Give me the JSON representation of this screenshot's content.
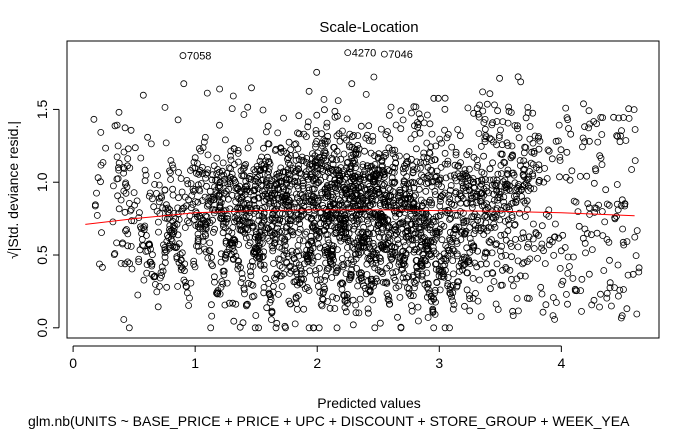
{
  "chart_data": {
    "type": "scatter",
    "title": "Scale-Location",
    "xlabel": "Predicted values",
    "ylabel": "√|Std. deviance resid.|",
    "subtitle": "glm.nb(UNITS ~ BASE_PRICE + PRICE + UPC + DISCOUNT + STORE_GROUP + WEEK_YEA",
    "xlim": [
      -0.05,
      4.8
    ],
    "ylim": [
      -0.07,
      1.97
    ],
    "x_ticks": [
      0,
      1,
      2,
      3,
      4
    ],
    "y_ticks": [
      0.0,
      0.5,
      1.0,
      1.5
    ],
    "x_tick_labels": [
      "0",
      "1",
      "2",
      "3",
      "4"
    ],
    "y_tick_labels": [
      "0.0",
      "0.5",
      "1.0",
      "1.5"
    ],
    "grid": false,
    "point_marker": "open-circle",
    "point_color": "#000000",
    "smoother_color": "#ff0000",
    "labeled_points": [
      {
        "label": "7058",
        "x": 0.9,
        "y": 1.87
      },
      {
        "label": "4270",
        "x": 2.25,
        "y": 1.89
      },
      {
        "label": "7046",
        "x": 2.55,
        "y": 1.88
      }
    ],
    "series": [
      {
        "name": "",
        "smoother": [
          [
            0.1,
            0.71
          ],
          [
            0.5,
            0.75
          ],
          [
            1.0,
            0.79
          ],
          [
            1.5,
            0.805
          ],
          [
            2.0,
            0.81
          ],
          [
            2.5,
            0.81
          ],
          [
            3.0,
            0.805
          ],
          [
            3.5,
            0.8
          ],
          [
            4.0,
            0.79
          ],
          [
            4.3,
            0.78
          ],
          [
            4.6,
            0.77
          ]
        ]
      }
    ]
  }
}
